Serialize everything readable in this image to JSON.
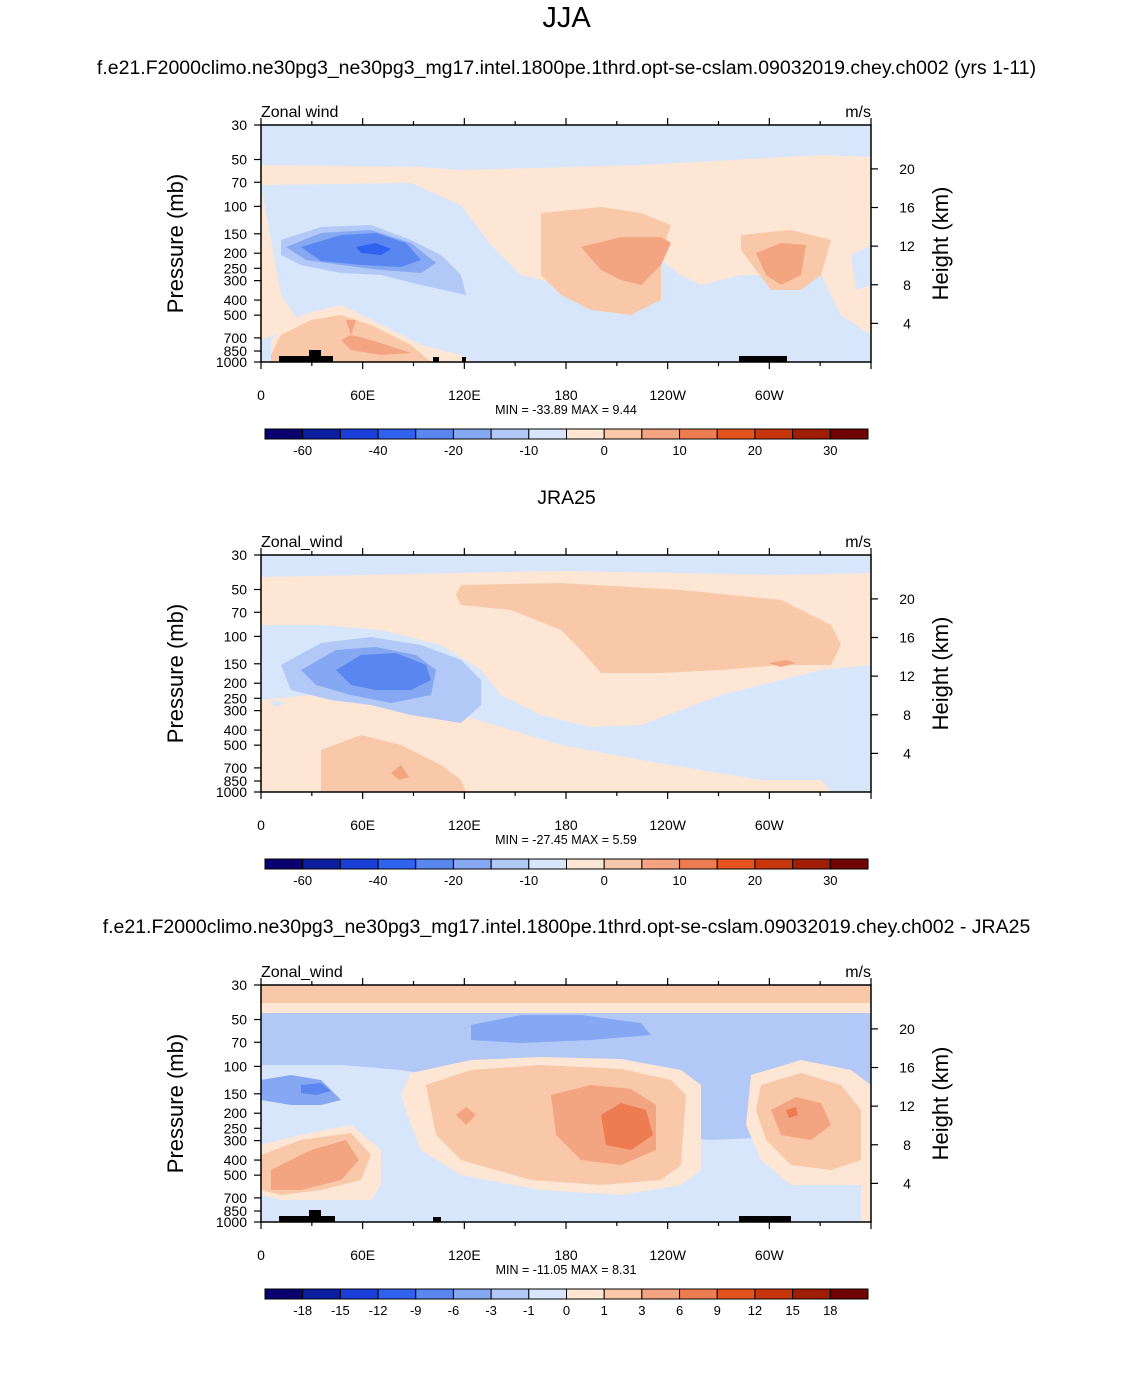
{
  "main_title": "JJA",
  "chart_data": [
    {
      "type": "contour",
      "title": "f.e21.F2000climo.ne30pg3_ne30pg3_mg17.intel.1800pe.1thrd.opt-se-cslam.09032019.chey.ch002 (yrs 1-11)",
      "left_label": "Zonal wind",
      "right_label": "m/s",
      "ylabel": "Pressure (mb)",
      "ylabel_right": "Height (km)",
      "x_ticks": [
        "0",
        "60E",
        "120E",
        "180",
        "120W",
        "60W"
      ],
      "y_ticks": [
        "30",
        "50",
        "70",
        "100",
        "150",
        "200",
        "250",
        "300",
        "400",
        "500",
        "700",
        "850",
        "1000"
      ],
      "height_ticks": [
        "20",
        "16",
        "12",
        "8",
        "4"
      ],
      "stats": "MIN = -33.89  MAX =   9.44",
      "min": -33.89,
      "max": 9.44,
      "levels": [
        "-60",
        "-40",
        "-20",
        "-10",
        "0",
        "10",
        "20",
        "30"
      ],
      "colors": [
        "#0b0070",
        "#0a1ea0",
        "#1a3fd8",
        "#2f62ee",
        "#5a86f0",
        "#86a8f2",
        "#b2c8f6",
        "#d8e6fb",
        "#fde6d3",
        "#f8c8a9",
        "#f3a481",
        "#ee7c51",
        "#e5531f",
        "#c8360d",
        "#a01e06",
        "#700404"
      ]
    },
    {
      "type": "contour",
      "title": "JRA25",
      "left_label": "Zonal_wind",
      "right_label": "m/s",
      "ylabel": "Pressure (mb)",
      "ylabel_right": "Height (km)",
      "x_ticks": [
        "0",
        "60E",
        "120E",
        "180",
        "120W",
        "60W"
      ],
      "y_ticks": [
        "30",
        "50",
        "70",
        "100",
        "150",
        "200",
        "250",
        "300",
        "400",
        "500",
        "700",
        "850",
        "1000"
      ],
      "height_ticks": [
        "20",
        "16",
        "12",
        "8",
        "4"
      ],
      "stats": "MIN = -27.45  MAX =   5.59",
      "min": -27.45,
      "max": 5.59,
      "levels": [
        "-60",
        "-40",
        "-20",
        "-10",
        "0",
        "10",
        "20",
        "30"
      ],
      "colors": [
        "#0b0070",
        "#0a1ea0",
        "#1a3fd8",
        "#2f62ee",
        "#5a86f0",
        "#86a8f2",
        "#b2c8f6",
        "#d8e6fb",
        "#fde6d3",
        "#f8c8a9",
        "#f3a481",
        "#ee7c51",
        "#e5531f",
        "#c8360d",
        "#a01e06",
        "#700404"
      ]
    },
    {
      "type": "contour",
      "title": "f.e21.F2000climo.ne30pg3_ne30pg3_mg17.intel.1800pe.1thrd.opt-se-cslam.09032019.chey.ch002 - JRA25",
      "left_label": "Zonal_wind",
      "right_label": "m/s",
      "ylabel": "Pressure (mb)",
      "ylabel_right": "Height (km)",
      "x_ticks": [
        "0",
        "60E",
        "120E",
        "180",
        "120W",
        "60W"
      ],
      "y_ticks": [
        "30",
        "50",
        "70",
        "100",
        "150",
        "200",
        "250",
        "300",
        "400",
        "500",
        "700",
        "850",
        "1000"
      ],
      "height_ticks": [
        "20",
        "16",
        "12",
        "8",
        "4"
      ],
      "stats": "MIN = -11.05  MAX =   8.31",
      "min": -11.05,
      "max": 8.31,
      "levels": [
        "-18",
        "-15",
        "-12",
        "-9",
        "-6",
        "-3",
        "-1",
        "0",
        "1",
        "3",
        "6",
        "9",
        "12",
        "15",
        "18"
      ],
      "colors": [
        "#0b0070",
        "#0a1ea0",
        "#1a3fd8",
        "#2f62ee",
        "#5a86f0",
        "#86a8f2",
        "#b2c8f6",
        "#d8e6fb",
        "#fde6d3",
        "#f8c8a9",
        "#f3a481",
        "#ee7c51",
        "#e5531f",
        "#c8360d",
        "#a01e06",
        "#700404"
      ]
    }
  ]
}
